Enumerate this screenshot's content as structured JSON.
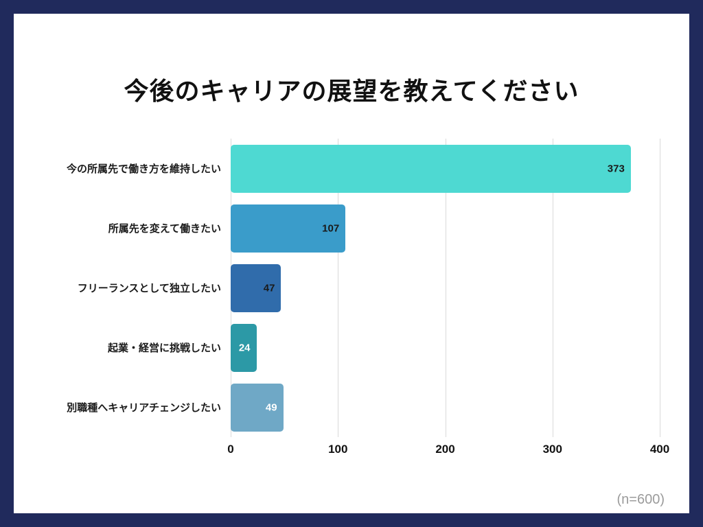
{
  "frame": {
    "border_color": "#202a5c",
    "background": "#ffffff"
  },
  "title": "今後のキャリアの展望を教えてください",
  "footnote": "(n=600)",
  "chart_data": {
    "type": "bar",
    "orientation": "horizontal",
    "title": "今後のキャリアの展望を教えてください",
    "categories": [
      "今の所属先で働き方を維持したい",
      "所属先を変えて働きたい",
      "フリーランスとして独立したい",
      "起業・経営に挑戦したい",
      "別職種へキャリアチェンジしたい"
    ],
    "values": [
      373,
      107,
      47,
      24,
      49
    ],
    "bar_colors": [
      "#4ed9d2",
      "#3a9cca",
      "#306cab",
      "#2c99a6",
      "#6fa8c6"
    ],
    "value_label_colors": [
      "#1a1a1a",
      "#1a1a1a",
      "#1a1a1a",
      "#ffffff",
      "#ffffff"
    ],
    "xlim": [
      0,
      400
    ],
    "xticks": [
      0,
      100,
      200,
      300,
      400
    ],
    "gridline_color": "#d9d9d9",
    "grid": "vertical",
    "legend": "none",
    "sample_note": "(n=600)"
  }
}
